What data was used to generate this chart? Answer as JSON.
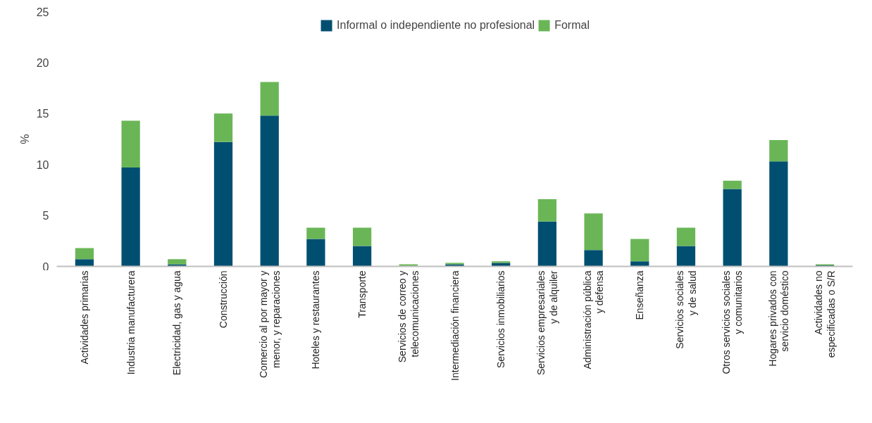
{
  "chart_data": {
    "type": "bar",
    "stacked": true,
    "ylabel": "%",
    "categories": [
      "Actividades primarias",
      "Industria manufacturera",
      "Electricidad, gas y agua",
      "Construcción",
      "Comercio al por mayor y\nmenor, y reparaciones",
      "Hoteles y restaurantes",
      "Transporte",
      "Servicios de correo y\ntelecomunicaciones",
      "Intermediación financiera",
      "Servicios inmobiliarios",
      "Servicios empresariales\ny de alquiler",
      "Administración pública\ny defensa",
      "Enseñanza",
      "Servicios sociales\ny de salud",
      "Otros servicios sociales\ny comunitarios",
      "Hogares privados con\nservicio doméstico",
      "Actividades no\nespecificadas o S/R"
    ],
    "series": [
      {
        "name": "Informal o independiente no profesional",
        "color": "#004f71",
        "values": [
          0.7,
          9.7,
          0.2,
          12.2,
          14.8,
          2.7,
          2.0,
          0.0,
          0.2,
          0.35,
          4.4,
          1.6,
          0.5,
          2.0,
          7.6,
          10.3,
          0.1
        ]
      },
      {
        "name": "Formal",
        "color": "#6ab657",
        "values": [
          1.1,
          4.6,
          0.5,
          2.8,
          3.3,
          1.1,
          1.8,
          0.2,
          0.15,
          0.15,
          2.2,
          3.6,
          2.2,
          1.8,
          0.8,
          2.1,
          0.1
        ]
      }
    ],
    "ylim": [
      0,
      25
    ],
    "yticks": [
      0,
      5,
      10,
      15,
      20,
      25
    ],
    "grid": false,
    "legend": "top"
  }
}
